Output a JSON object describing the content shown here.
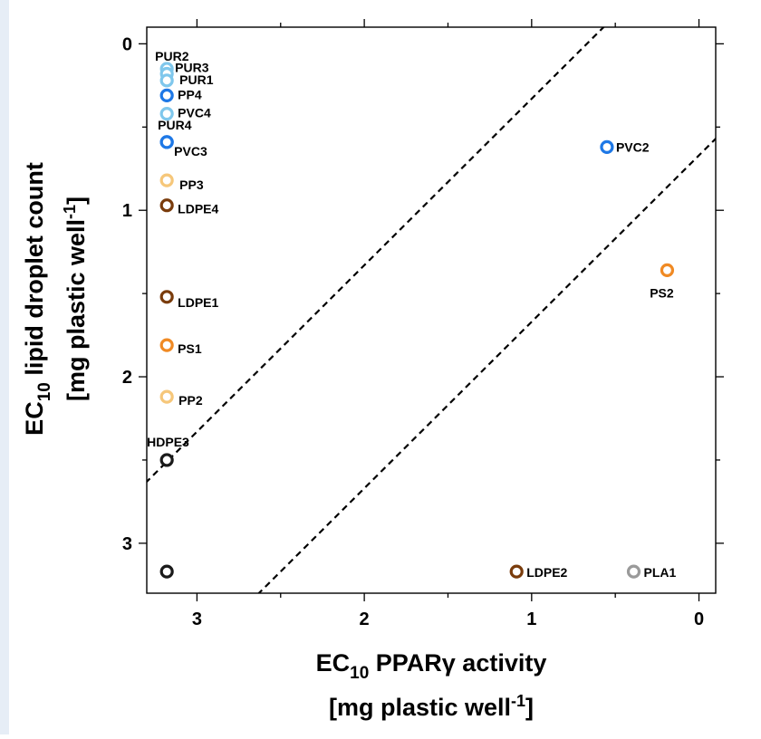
{
  "chart_data": {
    "type": "scatter",
    "xlabel": "EC10 PPARγ activity [mg plastic well-1]",
    "ylabel": "EC10 lipid droplet count [mg plastic well-1]",
    "x_axis": {
      "lim": [
        3.3,
        -0.1
      ],
      "reversed": true,
      "ticks": [
        3,
        2,
        1,
        0
      ],
      "tick_labels": [
        "3",
        "2",
        "1",
        "0"
      ],
      "title_main": "EC",
      "title_sub": "10",
      "title_rest": " PPARγ activity",
      "title_unit_a": "[mg plastic well",
      "title_unit_sup": "-1",
      "title_unit_b": "]"
    },
    "y_axis": {
      "lim": [
        -0.1,
        3.3
      ],
      "reversed": true,
      "ticks": [
        0,
        1,
        2,
        3
      ],
      "tick_labels": [
        "0",
        "1",
        "2",
        "3"
      ],
      "title_main": "EC",
      "title_sub": "10",
      "title_rest": " lipid droplet count",
      "title_unit_a": "[mg plastic well",
      "title_unit_sup": "-1",
      "title_unit_b": "]"
    },
    "grid": false,
    "colors": {
      "PUR": "#7FC7EC",
      "PVC": "#1E78E6",
      "PP": "#F6C77A",
      "LDPE": "#7A3C0C",
      "PS": "#F08A24",
      "HDPE": "#1A1A1A",
      "PLA": "#9A9A9A"
    },
    "points": [
      {
        "label": "PUR2",
        "x": 3.18,
        "y": 0.15,
        "color": "#7FC7EC"
      },
      {
        "label": "PUR3",
        "x": 3.18,
        "y": 0.18,
        "color": "#7FC7EC"
      },
      {
        "label": "PUR1",
        "x": 3.18,
        "y": 0.22,
        "color": "#7FC7EC"
      },
      {
        "label": "PP4",
        "x": 3.18,
        "y": 0.31,
        "color": "#1E78E6"
      },
      {
        "label": "PVC4",
        "x": 3.18,
        "y": 0.42,
        "color": "#7FC7EC"
      },
      {
        "label": "PUR4",
        "x": 3.18,
        "y": 0.59,
        "color": "#1E78E6"
      },
      {
        "label": "PVC3",
        "x": 3.18,
        "y": 0.59,
        "color": "#1E78E6"
      },
      {
        "label": "PP3",
        "x": 3.18,
        "y": 0.82,
        "color": "#F6C77A"
      },
      {
        "label": "LDPE4",
        "x": 3.18,
        "y": 0.97,
        "color": "#7A3C0C"
      },
      {
        "label": "LDPE1",
        "x": 3.18,
        "y": 1.52,
        "color": "#7A3C0C"
      },
      {
        "label": "PS1",
        "x": 3.18,
        "y": 1.81,
        "color": "#F08A24"
      },
      {
        "label": "PP2",
        "x": 3.18,
        "y": 2.12,
        "color": "#F6C77A"
      },
      {
        "label": "HDPE3",
        "x": 3.18,
        "y": 2.5,
        "color": "#1A1A1A"
      },
      {
        "label": "",
        "x": 3.18,
        "y": 3.17,
        "color": "#1A1A1A"
      },
      {
        "label": "PVC2",
        "x": 0.55,
        "y": 0.62,
        "color": "#1E78E6"
      },
      {
        "label": "PS2",
        "x": 0.19,
        "y": 1.36,
        "color": "#F08A24"
      },
      {
        "label": "LDPE2",
        "x": 1.09,
        "y": 3.17,
        "color": "#7A3C0C"
      },
      {
        "label": "PLA1",
        "x": 0.39,
        "y": 3.17,
        "color": "#9A9A9A"
      }
    ],
    "reference_lines": [
      {
        "style": "dashed",
        "x1": 3.4,
        "y1": 2.73,
        "x2": 0.5,
        "y2": -0.17
      },
      {
        "style": "dashed",
        "x1": 2.73,
        "y1": 3.4,
        "x2": -0.12,
        "y2": 0.55
      }
    ]
  }
}
